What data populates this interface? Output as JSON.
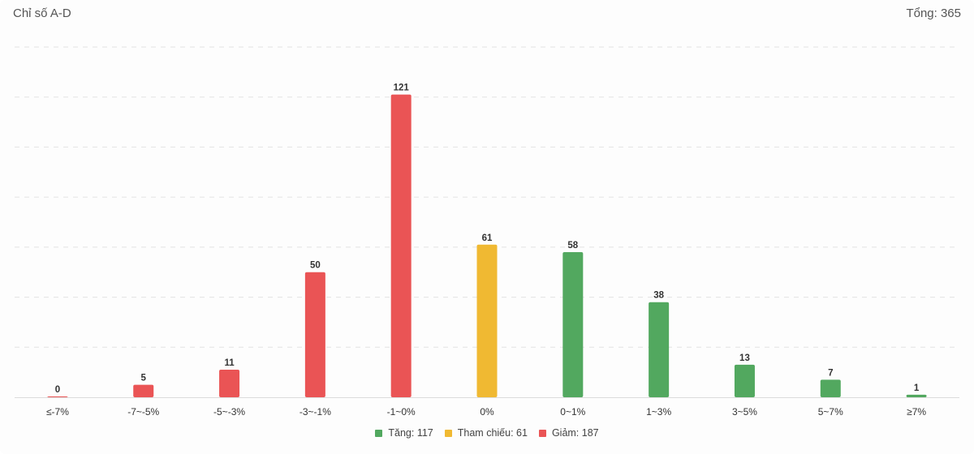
{
  "header": {
    "title": "Chỉ số A-D",
    "total_label": "Tổng: 365"
  },
  "legend": [
    {
      "label": "Tăng: 117",
      "color": "#52a85f"
    },
    {
      "label": "Tham chiếu: 61",
      "color": "#f0b932"
    },
    {
      "label": "Giảm: 187",
      "color": "#ea5455"
    }
  ],
  "chart_data": {
    "type": "bar",
    "title": "Chỉ số A-D",
    "xlabel": "",
    "ylabel": "",
    "ylim": [
      0,
      140
    ],
    "grid": true,
    "legend_position": "bottom",
    "categories": [
      "≤-7%",
      "-7~-5%",
      "-5~-3%",
      "-3~-1%",
      "-1~0%",
      "0%",
      "0~1%",
      "1~3%",
      "3~5%",
      "5~7%",
      "≥7%"
    ],
    "values": [
      0,
      5,
      11,
      50,
      121,
      61,
      58,
      38,
      13,
      7,
      1
    ],
    "colors": [
      "#ea5455",
      "#ea5455",
      "#ea5455",
      "#ea5455",
      "#ea5455",
      "#f0b932",
      "#52a85f",
      "#52a85f",
      "#52a85f",
      "#52a85f",
      "#52a85f"
    ]
  }
}
